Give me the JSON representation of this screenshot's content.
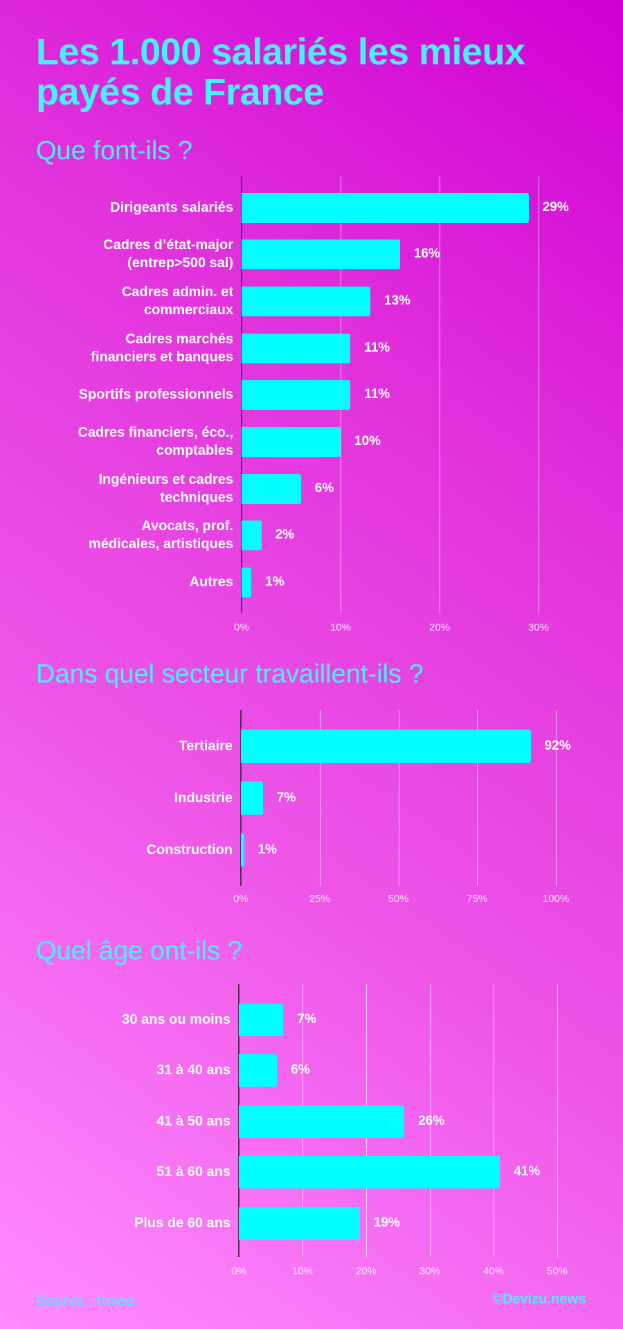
{
  "title": "Les 1.000 salariés les mieux payés de France",
  "colors": {
    "bar": "#00ffff",
    "title": "#44f2f7",
    "label": "#ffffff",
    "background_top_right": "#d000d4",
    "background_bottom_left": "#ff8cff"
  },
  "footer": {
    "source": "Source : Insee",
    "copyright": "©Devizu.news"
  },
  "chart_data": [
    {
      "type": "bar",
      "orientation": "horizontal",
      "title": "Que font-ils ?",
      "categories": [
        "Dirigeants salariés",
        "Cadres d’état-major\n(entrep>500 sal)",
        "Cadres admin. et\ncommerciaux",
        "Cadres marchés\nfinanciers et banques",
        "Sportifs professionnels",
        "Cadres financiers, éco.,\ncomptables",
        "Ingénieurs et cadres\ntechniques",
        "Avocats, prof.\nmédicales, artistiques",
        "Autres"
      ],
      "values": [
        29,
        16,
        13,
        11,
        11,
        10,
        6,
        2,
        1
      ],
      "value_labels": [
        "29%",
        "16%",
        "13%",
        "11%",
        "11%",
        "10%",
        "6%",
        "2%",
        "1%"
      ],
      "xlim": [
        0,
        30
      ],
      "ticks": [
        "0%",
        "10%",
        "20%",
        "30%"
      ],
      "tick_values": [
        0,
        10,
        20,
        30
      ],
      "grid": true,
      "unit": "%"
    },
    {
      "type": "bar",
      "orientation": "horizontal",
      "title": "Dans quel secteur travaillent-ils ?",
      "categories": [
        "Tertiaire",
        "Industrie",
        "Construction"
      ],
      "values": [
        92,
        7,
        1
      ],
      "value_labels": [
        "92%",
        "7%",
        "1%"
      ],
      "xlim": [
        0,
        100
      ],
      "ticks": [
        "0%",
        "25%",
        "50%",
        "75%",
        "100%"
      ],
      "tick_values": [
        0,
        25,
        50,
        75,
        100
      ],
      "grid": true,
      "unit": "%"
    },
    {
      "type": "bar",
      "orientation": "horizontal",
      "title": "Quel âge ont-ils ?",
      "categories": [
        "30 ans ou moins",
        "31 à 40 ans",
        "41 à 50 ans",
        "51 à 60 ans",
        "Plus de 60 ans"
      ],
      "values": [
        7,
        6,
        26,
        41,
        19
      ],
      "value_labels": [
        "7%",
        "6%",
        "26%",
        "41%",
        "19%"
      ],
      "xlim": [
        0,
        50
      ],
      "ticks": [
        "0%",
        "10%",
        "20%",
        "30%",
        "40%",
        "50%"
      ],
      "tick_values": [
        0,
        10,
        20,
        30,
        40,
        50
      ],
      "grid": true,
      "unit": "%"
    }
  ]
}
